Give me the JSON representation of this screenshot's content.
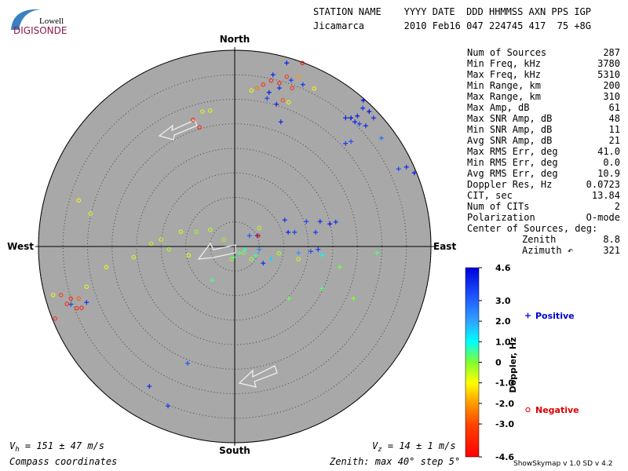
{
  "logo": {
    "top": "Lowell",
    "bottom": "DIGISONDE"
  },
  "header": {
    "labels": "STATION NAME    YYYY DATE  DDD HHMMSS AXN PPS IGP",
    "values": "Jicamarca       2010 Feb16 047 224745 417  75 +8G"
  },
  "stats": [
    [
      "Num of Sources",
      "287"
    ],
    [
      "Min Freq, kHz",
      "3780"
    ],
    [
      "Max Freq, kHz",
      "5310"
    ],
    [
      "Min Range, km",
      "200"
    ],
    [
      "Max Range, km",
      "310"
    ],
    [
      "Max Amp, dB",
      "61"
    ],
    [
      "Max SNR Amp, dB",
      "48"
    ],
    [
      "Min SNR Amp, dB",
      "11"
    ],
    [
      "Avg SNR Amp, dB",
      "21"
    ],
    [
      "Max RMS Err, deg",
      "41.0"
    ],
    [
      "Min RMS Err, deg",
      "0.0"
    ],
    [
      "Avg RMS Err, deg",
      "10.9"
    ],
    [
      "Doppler Res, Hz",
      "0.0723"
    ],
    [
      "CIT, sec",
      "13.84"
    ],
    [
      "Num of CITs",
      "2"
    ],
    [
      "Polarization",
      "O-mode"
    ]
  ],
  "center": {
    "title": "Center of Sources, deg:",
    "rows": [
      [
        "Zenith",
        "8.8"
      ],
      [
        "Azimuth ↶",
        "321"
      ]
    ]
  },
  "footer": {
    "vh": [
      "V",
      "h",
      " = 151 ± 47 m/s"
    ],
    "vz": [
      "V",
      "z",
      " = 14 ± 1 m/s"
    ],
    "coords": "Compass coordinates",
    "zenith": "Zenith: max 40°  step 5°",
    "version": "ShowSkymap v 1.0  SD v 4.2"
  },
  "chart_data": {
    "type": "skymap",
    "directions": {
      "north": "North",
      "south": "South",
      "east": "East",
      "west": "West"
    },
    "rlim": [
      0,
      40
    ],
    "rticks": [
      5,
      10,
      15,
      20,
      25,
      30,
      35,
      40
    ],
    "colorbar": {
      "label": "Doppler, Hz",
      "lim": [
        -4.6,
        4.6
      ],
      "ticks": [
        4.6,
        {
          "value": 3,
          "label": "3.0"
        },
        {
          "value": 2,
          "label": "2.0"
        },
        {
          "value": 1,
          "label": "1.0"
        },
        0,
        {
          "value": -1,
          "label": "-1.0"
        },
        {
          "value": -2,
          "label": "-2.0"
        },
        {
          "value": -3,
          "label": "-3.0"
        },
        -4.6
      ]
    },
    "series": [
      {
        "name": "Positive",
        "color": "#0000cc",
        "marker": "plus",
        "x": [
          7.8,
          9.1,
          7.0,
          6.6,
          9.4,
          8.5,
          11.5,
          10.6,
          13.9,
          22.6,
          23.7,
          25.0,
          26.1,
          27.4,
          28.3,
          26.7,
          25.4,
          24.5,
          26.2,
          22.6,
          23.7,
          29.9,
          33.4,
          35.0,
          36.6,
          10.2,
          14.6,
          10.9,
          12.2,
          16.5,
          17.4,
          19.4,
          20.6,
          15.5,
          17.0,
          13.0,
          17.8,
          4.6,
          3.0,
          5.0,
          5.8,
          7.4,
          4.3,
          -4.6,
          11.0,
          17.8,
          21.4,
          24.2,
          29.0,
          -9.6,
          -17.4,
          -13.6,
          -30.2,
          -33.4,
          1.0,
          2.1,
          -0.2
        ],
        "y": [
          35.0,
          32.3,
          31.4,
          30.2,
          25.4,
          29.0,
          33.9,
          37.4,
          33.0,
          26.2,
          26.2,
          26.6,
          28.2,
          27.5,
          26.2,
          24.6,
          25.0,
          25.4,
          29.8,
          21.0,
          21.4,
          22.1,
          15.8,
          16.2,
          15.0,
          5.4,
          5.1,
          2.9,
          2.9,
          2.9,
          5.1,
          4.6,
          5.0,
          -1.0,
          -0.6,
          -1.3,
          -1.8,
          2.2,
          2.2,
          -0.6,
          -3.4,
          -2.6,
          -1.9,
          -6.9,
          -10.6,
          -8.6,
          -4.2,
          -10.6,
          -1.3,
          -23.8,
          -28.5,
          -32.5,
          -11.4,
          -11.8,
          -1.3,
          -0.6,
          -2.2
        ],
        "doppler": [
          4.0,
          3.8,
          4.2,
          3.5,
          3.9,
          4.0,
          3.6,
          4.1,
          3.7,
          4.0,
          4.3,
          4.2,
          3.9,
          4.4,
          3.8,
          4.0,
          3.6,
          4.1,
          4.5,
          3.7,
          3.3,
          2.8,
          3.4,
          3.9,
          4.2,
          3.8,
          3.5,
          4.0,
          3.6,
          3.7,
          3.9,
          4.2,
          3.8,
          3.3,
          3.6,
          2.2,
          1.0,
          3.9,
          3.1,
          2.4,
          3.8,
          1.5,
          0.6,
          0.4,
          0.2,
          0.3,
          0.1,
          0.0,
          0.3,
          3.2,
          3.9,
          3.6,
          3.8,
          3.5,
          0.5,
          0.7,
          0.4
        ]
      },
      {
        "name": "Negative",
        "color": "#dd0000",
        "marker": "circle",
        "x": [
          3.4,
          4.6,
          5.8,
          7.4,
          10.6,
          13.8,
          13.0,
          16.2,
          11.7,
          9.8,
          9.1,
          11.0,
          -6.6,
          -5.0,
          -8.5,
          -7.2,
          -31.8,
          -29.4,
          -26.2,
          -20.6,
          -17.0,
          -15.0,
          -13.4,
          -11.0,
          -9.4,
          -7.8,
          -5.0,
          -2.2,
          1.8,
          3.4,
          -0.6,
          4.8,
          5.0,
          9.0,
          13.0,
          -30.2,
          -35.4,
          -37.0,
          -33.4,
          -34.2,
          -32.2,
          -31.2,
          -36.6,
          -31.8
        ],
        "y": [
          31.8,
          32.3,
          33.0,
          33.8,
          34.6,
          37.4,
          34.6,
          32.2,
          32.3,
          29.8,
          33.3,
          29.4,
          27.5,
          27.7,
          25.8,
          24.3,
          9.4,
          6.7,
          -4.2,
          -2.2,
          0.6,
          1.4,
          -0.6,
          3.0,
          -1.8,
          3.0,
          3.4,
          1.4,
          -1.3,
          -2.6,
          -2.6,
          2.2,
          3.8,
          -1.4,
          -2.6,
          -8.2,
          -9.9,
          -9.9,
          -10.6,
          -11.7,
          -12.6,
          -12.5,
          -14.7,
          -10.6
        ],
        "doppler": [
          -1.0,
          -2.5,
          -3.8,
          -3.9,
          -3.5,
          -4.2,
          -2.0,
          -1.0,
          -3.6,
          -3.0,
          -4.0,
          -0.9,
          -0.8,
          -0.7,
          -3.8,
          -4.0,
          -1.0,
          -0.9,
          -1.0,
          -0.8,
          -0.5,
          -0.7,
          -0.4,
          -0.8,
          -0.9,
          -0.3,
          -0.6,
          -0.2,
          -0.1,
          -0.3,
          -0.2,
          -4.0,
          -0.5,
          -0.4,
          -0.6,
          -0.9,
          -3.5,
          -0.9,
          -3.8,
          -4.0,
          -3.9,
          -4.1,
          -3.7,
          -2.8
        ]
      }
    ]
  }
}
